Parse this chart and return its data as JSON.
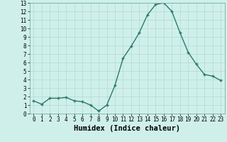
{
  "x": [
    0,
    1,
    2,
    3,
    4,
    5,
    6,
    7,
    8,
    9,
    10,
    11,
    12,
    13,
    14,
    15,
    16,
    17,
    18,
    19,
    20,
    21,
    22,
    23
  ],
  "y": [
    1.5,
    1.1,
    1.8,
    1.8,
    1.9,
    1.5,
    1.4,
    1.0,
    0.3,
    1.0,
    3.3,
    6.5,
    7.9,
    9.5,
    11.6,
    12.8,
    13.0,
    12.0,
    9.5,
    7.2,
    5.8,
    4.6,
    4.4,
    3.9
  ],
  "line_color": "#2a7a68",
  "marker": "+",
  "marker_size": 3.5,
  "marker_lw": 1.0,
  "bg_color": "#cff0ea",
  "grid_color": "#b8dcd6",
  "xlabel": "Humidex (Indice chaleur)",
  "xlim": [
    -0.5,
    23.5
  ],
  "ylim": [
    0,
    13
  ],
  "yticks": [
    0,
    1,
    2,
    3,
    4,
    5,
    6,
    7,
    8,
    9,
    10,
    11,
    12,
    13
  ],
  "xticks": [
    0,
    1,
    2,
    3,
    4,
    5,
    6,
    7,
    8,
    9,
    10,
    11,
    12,
    13,
    14,
    15,
    16,
    17,
    18,
    19,
    20,
    21,
    22,
    23
  ],
  "tick_fontsize": 5.5,
  "xlabel_fontsize": 7.5,
  "line_width": 1.0
}
